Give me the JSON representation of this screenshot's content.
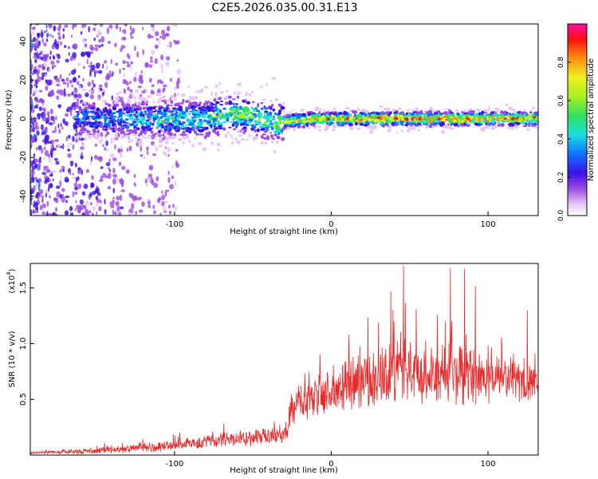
{
  "title": "C2E5.2026.035.00.31.E13",
  "chart_data": [
    {
      "type": "heatmap",
      "name": "spectrogram",
      "xlabel": "Height of straight line (km)",
      "ylabel": "Frequency (Hz)",
      "xlim": [
        -192,
        132
      ],
      "ylim": [
        -50,
        49
      ],
      "xticks": [
        -100,
        0,
        100
      ],
      "xtick_labels": [
        "-100",
        "0",
        "100"
      ],
      "yticks": [
        -40,
        -20,
        0,
        20,
        40
      ],
      "ytick_labels": [
        "-40",
        "-20",
        "0",
        "20",
        "40"
      ],
      "colorbar": {
        "label": "Normalized spectral amplitude",
        "range": [
          0,
          1
        ],
        "ticks": [
          0.0,
          0.2,
          0.4,
          0.6,
          0.8
        ],
        "tick_labels": [
          "0.0",
          "0.2",
          "0.4",
          "0.6",
          "0.8"
        ]
      },
      "ridge": {
        "description_points_x": [
          -192,
          -140,
          -100,
          -80,
          -60,
          -45,
          -35,
          -25,
          -10,
          0,
          40,
          80,
          132
        ],
        "center_freq_hz": [
          0,
          0,
          0,
          0,
          3,
          0,
          -2,
          -1,
          0,
          0,
          0,
          0,
          0
        ],
        "amplitude": [
          0.3,
          0.35,
          0.45,
          0.5,
          0.55,
          0.55,
          0.6,
          0.7,
          0.8,
          0.85,
          0.9,
          0.9,
          0.85
        ]
      }
    },
    {
      "type": "line",
      "name": "snr",
      "xlabel": "Height of straight line (km)",
      "ylabel": "SNR (10 * v/v)",
      "y_multiplier": "(x10",
      "y_multiplier_exp": "4",
      "y_multiplier_close": ")",
      "xlim": [
        -192,
        132
      ],
      "ylim": [
        0,
        1.72
      ],
      "xticks": [
        -100,
        0,
        100
      ],
      "xtick_labels": [
        "-100",
        "0",
        "100"
      ],
      "yticks": [
        0.5,
        1.0,
        1.5
      ],
      "ytick_labels": [
        "0.5",
        "1.0",
        "1.5"
      ],
      "color": "#e82a2a",
      "envelope": {
        "x": [
          -192,
          -160,
          -130,
          -100,
          -80,
          -60,
          -40,
          -28,
          -26,
          -10,
          0,
          20,
          35,
          45,
          60,
          80,
          100,
          120,
          132
        ],
        "baseline": [
          0.02,
          0.03,
          0.05,
          0.08,
          0.12,
          0.14,
          0.15,
          0.2,
          0.4,
          0.5,
          0.55,
          0.65,
          0.7,
          0.72,
          0.7,
          0.68,
          0.66,
          0.65,
          0.65
        ],
        "spread": [
          0.02,
          0.05,
          0.07,
          0.1,
          0.12,
          0.14,
          0.17,
          0.18,
          0.35,
          0.4,
          0.45,
          0.5,
          0.55,
          0.6,
          0.55,
          0.55,
          0.45,
          0.4,
          0.3
        ]
      },
      "peaks": [
        {
          "x": 46,
          "y": 1.7
        },
        {
          "x": 76,
          "y": 1.68
        },
        {
          "x": 85,
          "y": 1.67
        },
        {
          "x": 38,
          "y": 1.47
        },
        {
          "x": 92,
          "y": 1.52
        },
        {
          "x": 40,
          "y": 1.2
        },
        {
          "x": 125,
          "y": 1.3
        }
      ]
    }
  ]
}
